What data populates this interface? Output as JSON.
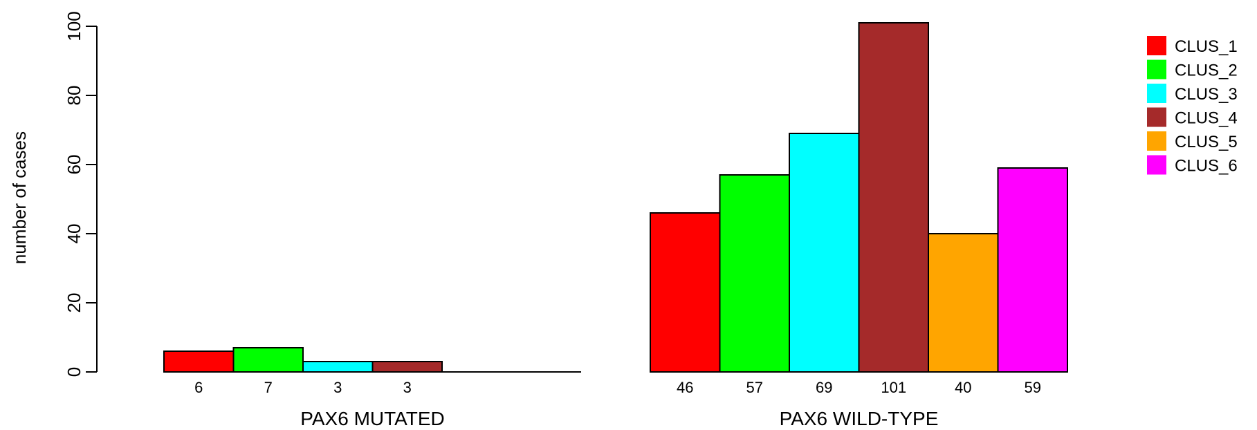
{
  "chart_data": {
    "type": "bar",
    "ylabel": "number of cases",
    "ylim": [
      0,
      100
    ],
    "yticks": [
      0,
      20,
      40,
      60,
      80,
      100
    ],
    "legend_position": "top-right",
    "series": [
      {
        "name": "CLUS_1",
        "color": "#FF0000"
      },
      {
        "name": "CLUS_2",
        "color": "#00FF00"
      },
      {
        "name": "CLUS_3",
        "color": "#00FFFF"
      },
      {
        "name": "CLUS_4",
        "color": "#A52A2A"
      },
      {
        "name": "CLUS_5",
        "color": "#FFA500"
      },
      {
        "name": "CLUS_6",
        "color": "#FF00FF"
      }
    ],
    "groups": [
      {
        "label": "PAX6 MUTATED",
        "values": [
          6,
          7,
          3,
          3,
          0,
          0
        ],
        "value_labels": [
          "6",
          "7",
          "3",
          "3",
          "",
          ""
        ]
      },
      {
        "label": "PAX6 WILD-TYPE",
        "values": [
          46,
          57,
          69,
          101,
          40,
          59
        ],
        "value_labels": [
          "46",
          "57",
          "69",
          "101",
          "40",
          "59"
        ]
      }
    ]
  }
}
